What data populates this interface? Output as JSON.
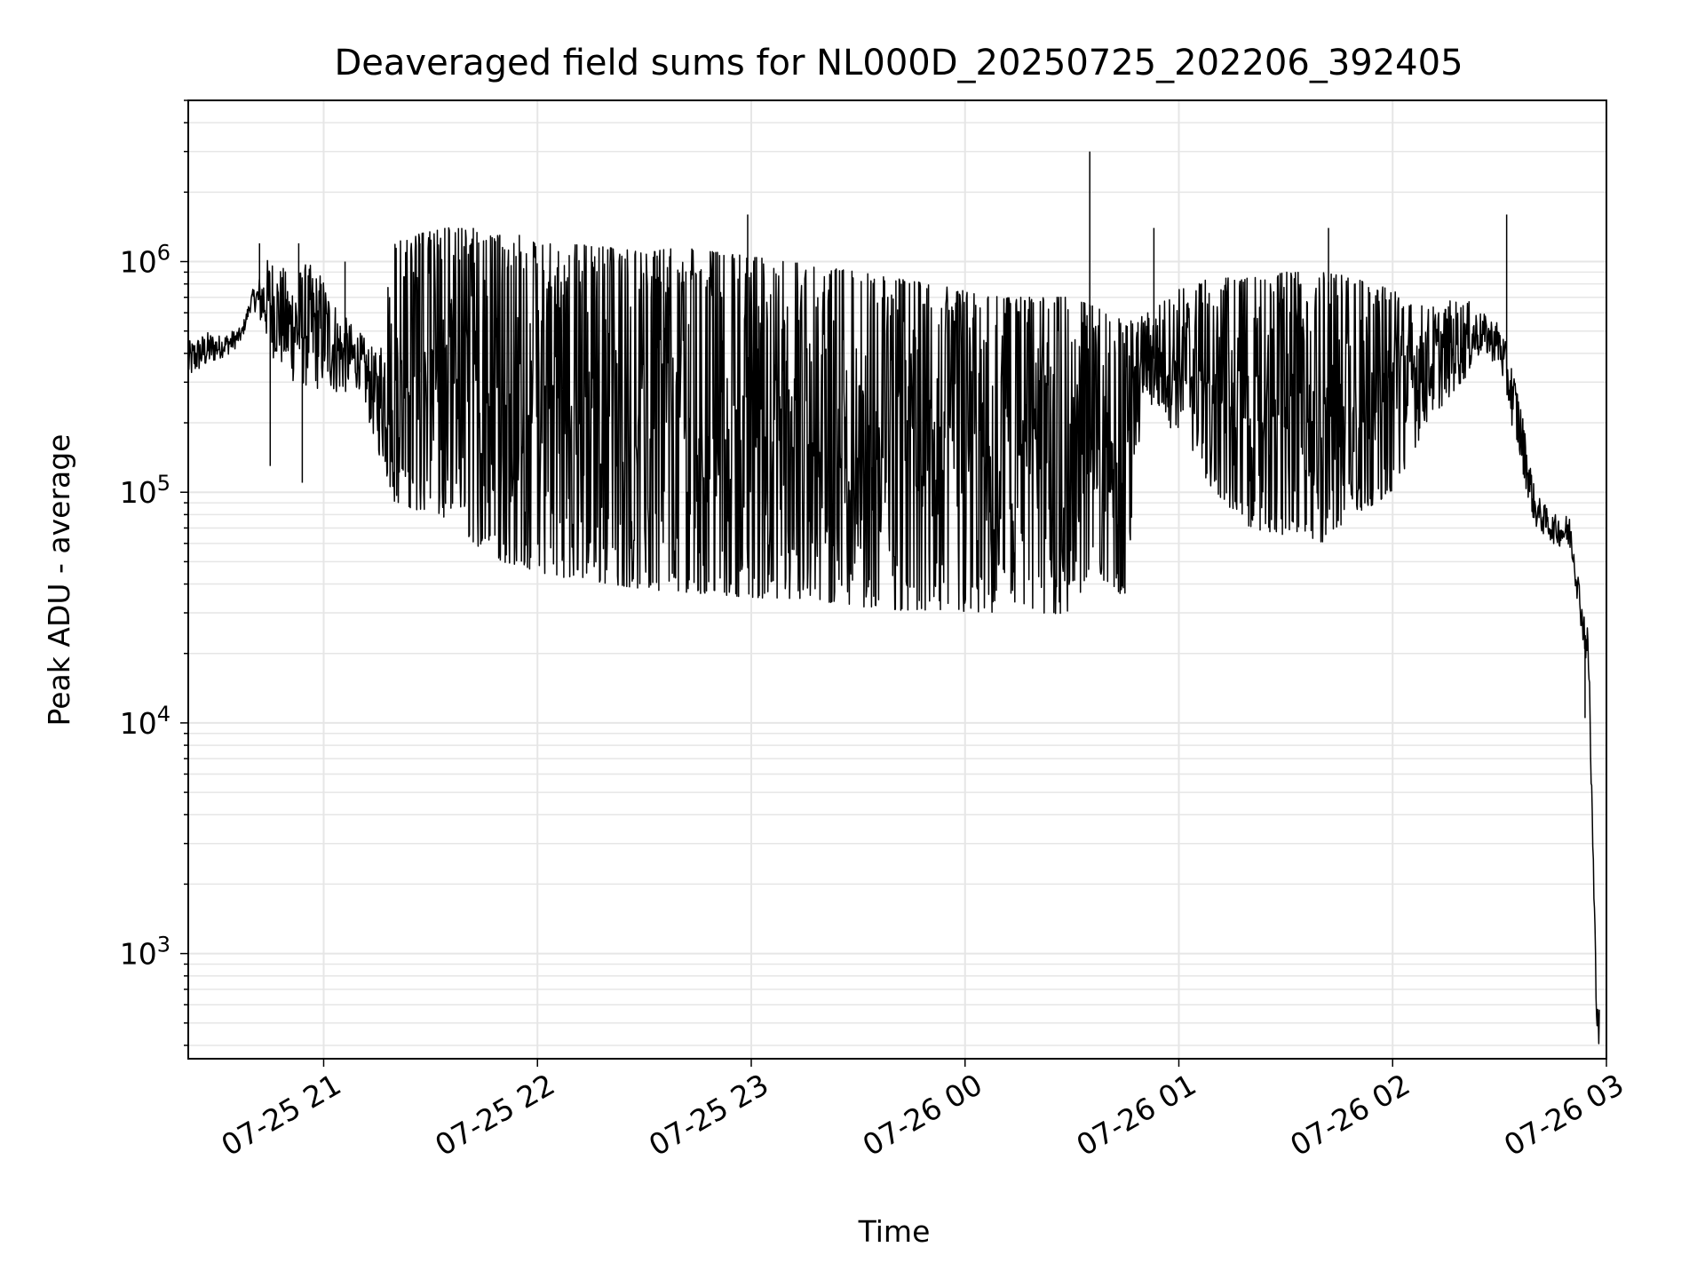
{
  "chart_data": {
    "type": "line",
    "title": "Deaveraged field sums for NL000D_20250725_202206_392405",
    "xlabel": "Time",
    "ylabel": "Peak ADU - average",
    "yscale": "log",
    "ylim": [
      350,
      5000000
    ],
    "xlim": [
      "07-25 20:22",
      "07-26 03:00"
    ],
    "grid": true,
    "line_color": "#000000",
    "grid_color": "#e6e6e6",
    "x_ticks": [
      {
        "t": "07-25 21:00",
        "label": "07-25 21"
      },
      {
        "t": "07-25 22:00",
        "label": "07-25 22"
      },
      {
        "t": "07-25 23:00",
        "label": "07-25 23"
      },
      {
        "t": "07-26 00:00",
        "label": "07-26 00"
      },
      {
        "t": "07-26 01:00",
        "label": "07-26 01"
      },
      {
        "t": "07-26 02:00",
        "label": "07-26 02"
      },
      {
        "t": "07-26 03:00",
        "label": "07-26 03"
      }
    ],
    "y_ticks": [
      {
        "value": 1000,
        "base": "10",
        "exp": "3"
      },
      {
        "value": 10000,
        "base": "10",
        "exp": "4"
      },
      {
        "value": 100000,
        "base": "10",
        "exp": "5"
      },
      {
        "value": 1000000,
        "base": "10",
        "exp": "6"
      }
    ],
    "series": [
      {
        "x": [
          "07-25 20:22",
          "07-25 20:25",
          "07-25 20:28",
          "07-25 20:31",
          "07-25 20:34",
          "07-25 20:37",
          "07-25 20:40",
          "07-25 20:45",
          "07-25 20:50",
          "07-25 20:55",
          "07-25 21:00",
          "07-25 21:05",
          "07-25 21:10",
          "07-25 21:15",
          "07-25 21:20",
          "07-25 21:25",
          "07-25 21:30",
          "07-25 21:35",
          "07-25 21:40",
          "07-25 21:45",
          "07-25 21:50",
          "07-25 21:55",
          "07-25 22:00",
          "07-25 22:10",
          "07-25 22:20",
          "07-25 22:30",
          "07-25 22:40",
          "07-25 22:50",
          "07-25 23:00",
          "07-25 23:10",
          "07-25 23:20",
          "07-25 23:30",
          "07-25 23:40",
          "07-25 23:50",
          "07-26 00:00",
          "07-26 00:10",
          "07-26 00:20",
          "07-26 00:30",
          "07-26 00:35",
          "07-26 00:40",
          "07-26 00:45",
          "07-26 00:50",
          "07-26 00:55",
          "07-26 01:00",
          "07-26 01:10",
          "07-26 01:20",
          "07-26 01:30",
          "07-26 01:40",
          "07-26 01:50",
          "07-26 02:00",
          "07-26 02:10",
          "07-26 02:20",
          "07-26 02:25",
          "07-26 02:30",
          "07-26 02:35",
          "07-26 02:40",
          "07-26 02:45",
          "07-26 02:50",
          "07-26 02:53",
          "07-26 02:55",
          "07-26 02:56",
          "07-26 02:57",
          "07-26 02:58"
        ],
        "low": [
          300000,
          330000,
          350000,
          380000,
          400000,
          450000,
          650000,
          400000,
          300000,
          280000,
          270000,
          260000,
          280000,
          150000,
          90000,
          85000,
          80000,
          75000,
          65000,
          55000,
          50000,
          48000,
          45000,
          42000,
          40000,
          38000,
          37000,
          36000,
          35000,
          34000,
          33000,
          32000,
          31000,
          30000,
          30000,
          29000,
          29000,
          30000,
          45000,
          40000,
          35000,
          250000,
          200000,
          180000,
          100000,
          70000,
          65000,
          60000,
          80000,
          100000,
          200000,
          300000,
          400000,
          350000,
          150000,
          70000,
          60000,
          55000,
          25000,
          15000,
          3000,
          600,
          350
        ],
        "high": [
          450000,
          480000,
          500000,
          480000,
          500000,
          520000,
          750000,
          1100000,
          900000,
          1000000,
          900000,
          600000,
          500000,
          400000,
          1200000,
          1300000,
          1350000,
          1400000,
          1400000,
          1300000,
          1300000,
          1300000,
          1200000,
          1200000,
          1150000,
          1100000,
          1150000,
          1100000,
          1050000,
          1000000,
          950000,
          900000,
          850000,
          800000,
          750000,
          700000,
          700000,
          700000,
          650000,
          600000,
          550000,
          600000,
          700000,
          800000,
          850000,
          850000,
          900000,
          900000,
          850000,
          750000,
          650000,
          700000,
          600000,
          550000,
          300000,
          100000,
          80000,
          80000,
          35000,
          25000,
          5000,
          1000,
          600
        ],
        "line_width": 1.5
      }
    ],
    "spikes": [
      {
        "t": "07-25 20:42",
        "value": 1200000
      },
      {
        "t": "07-25 20:45",
        "value": 130000
      },
      {
        "t": "07-25 20:53",
        "value": 1200000
      },
      {
        "t": "07-25 20:54",
        "value": 110000
      },
      {
        "t": "07-25 21:06",
        "value": 1000000
      },
      {
        "t": "07-25 21:23",
        "value": 1100000
      },
      {
        "t": "07-25 21:27",
        "value": 1200000
      },
      {
        "t": "07-25 21:34",
        "value": 1400000
      },
      {
        "t": "07-25 21:42",
        "value": 1400000
      },
      {
        "t": "07-25 22:59",
        "value": 1600000
      },
      {
        "t": "07-26 00:35",
        "value": 3000000
      },
      {
        "t": "07-26 00:53",
        "value": 1400000
      },
      {
        "t": "07-26 01:42",
        "value": 1400000
      },
      {
        "t": "07-26 02:32",
        "value": 1600000
      },
      {
        "t": "07-26 02:54",
        "value": 10500
      }
    ]
  }
}
